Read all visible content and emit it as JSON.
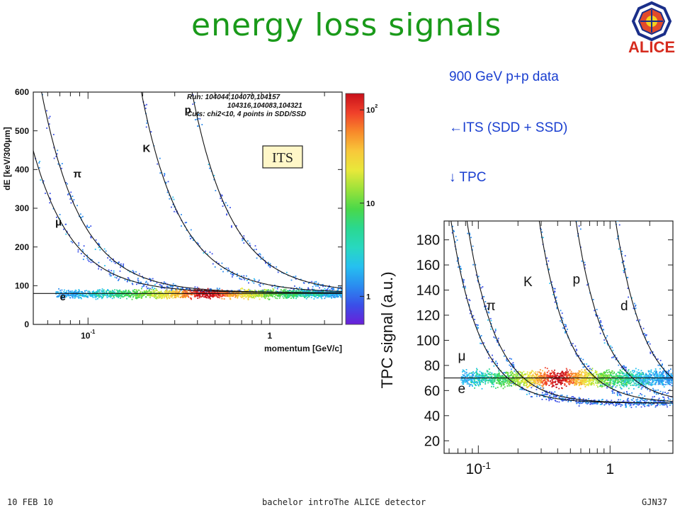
{
  "slide": {
    "title": "energy loss signals",
    "notes": [
      "900 GeV p+p data",
      "←ITS (SDD + SSD)",
      "↓ TPC"
    ],
    "footer_left": "10 FEB 10",
    "footer_center": "bachelor introThe ALICE detector",
    "footer_right": "GJN37",
    "logo_text": "ALICE",
    "colors": {
      "title": "#1a9a1a",
      "notes": "#1a3fd0",
      "logo_red": "#d62b1e"
    }
  },
  "chart_data": [
    {
      "type": "heatmap",
      "subtitle": "ITS",
      "ylabel": "dE [keV/300μm]",
      "xlabel": "momentum [GeV/c]",
      "x_scale": "log",
      "xlim": [
        0.05,
        2.5
      ],
      "ylim": [
        0,
        600
      ],
      "y_ticks": [
        0,
        100,
        200,
        300,
        400,
        500,
        600
      ],
      "x_ticks": [
        {
          "value": 0.1,
          "label": "10",
          "exp": "-1"
        },
        {
          "value": 1,
          "label": "1",
          "exp": ""
        }
      ],
      "info_lines": [
        "Run: 104044,104070,104157",
        "104316,104083,104321",
        "Cuts: chi2<10, 4 points in SDD/SSD"
      ],
      "colorbar": {
        "scale": "log",
        "ticks": [
          {
            "value": 1,
            "label": "1",
            "exp": ""
          },
          {
            "value": 10,
            "label": "10",
            "exp": ""
          },
          {
            "value": 100,
            "label": "10",
            "exp": "2"
          }
        ],
        "colors": [
          "#6a1fd8",
          "#3a4fe8",
          "#2a8cf0",
          "#26c0f0",
          "#28d8c0",
          "#2ad890",
          "#4ad84a",
          "#9ae23a",
          "#e8e83a",
          "#f8c83a",
          "#f88a2a",
          "#f0402a",
          "#c8101a"
        ]
      },
      "curve_labels": [
        {
          "label": "p",
          "x": 0.34,
          "y": 545
        },
        {
          "label": "K",
          "x": 0.2,
          "y": 445
        },
        {
          "label": "π",
          "x": 0.083,
          "y": 380
        },
        {
          "label": "μ",
          "x": 0.066,
          "y": 255
        },
        {
          "label": "e",
          "x": 0.07,
          "y": 62
        }
      ],
      "bands": [
        {
          "name": "p",
          "mass": 0.938
        },
        {
          "name": "K",
          "mass": 0.494
        },
        {
          "name": "π",
          "mass": 0.1396
        },
        {
          "name": "μ",
          "mass": 0.1057
        },
        {
          "name": "e",
          "level": 80
        }
      ],
      "band_constant": 82
    },
    {
      "type": "heatmap",
      "ylabel": "TPC signal (a.u.)",
      "xlabel": "",
      "x_scale": "log",
      "xlim": [
        0.055,
        3
      ],
      "ylim": [
        10,
        195
      ],
      "y_ticks": [
        20,
        40,
        60,
        80,
        100,
        120,
        140,
        160,
        180
      ],
      "x_ticks": [
        {
          "value": 0.1,
          "label": "10",
          "exp": "-1"
        },
        {
          "value": 1,
          "label": "1",
          "exp": ""
        }
      ],
      "curve_labels": [
        {
          "label": "K",
          "x": 0.22,
          "y": 143
        },
        {
          "label": "p",
          "x": 0.52,
          "y": 145
        },
        {
          "label": "d",
          "x": 1.2,
          "y": 124
        },
        {
          "label": "π",
          "x": 0.115,
          "y": 124
        },
        {
          "label": "μ",
          "x": 0.07,
          "y": 84
        },
        {
          "label": "e",
          "x": 0.07,
          "y": 58
        }
      ],
      "bands": [
        {
          "name": "d",
          "mass": 1.876
        },
        {
          "name": "p",
          "mass": 0.938
        },
        {
          "name": "K",
          "mass": 0.494
        },
        {
          "name": "π",
          "mass": 0.1396
        },
        {
          "name": "μ",
          "mass": 0.1057
        },
        {
          "name": "e",
          "level": 70
        }
      ],
      "band_constant": 50
    }
  ]
}
